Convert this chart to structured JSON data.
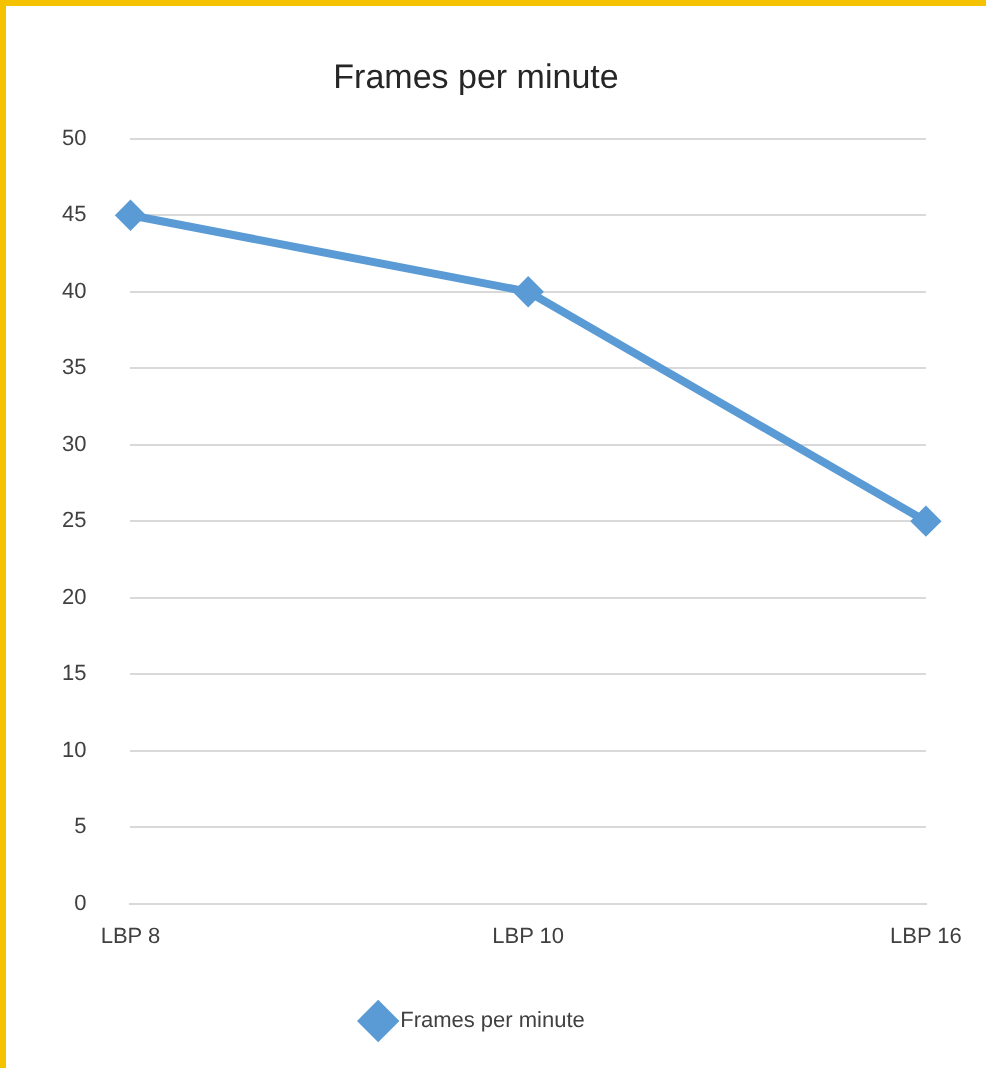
{
  "chart_data": {
    "type": "line",
    "title": "Frames per minute",
    "categories": [
      "LBP 8",
      "LBP 10",
      "LBP 16"
    ],
    "series": [
      {
        "name": "Frames per minute",
        "color": "#5b9bd5",
        "values": [
          45,
          40,
          25
        ]
      }
    ],
    "ylim": [
      0,
      50
    ],
    "yticks": [
      0,
      5,
      10,
      15,
      20,
      25,
      30,
      35,
      40,
      45,
      50
    ],
    "grid": "y",
    "legend": "bottom",
    "marker": "diamond",
    "line_style": "solid"
  }
}
